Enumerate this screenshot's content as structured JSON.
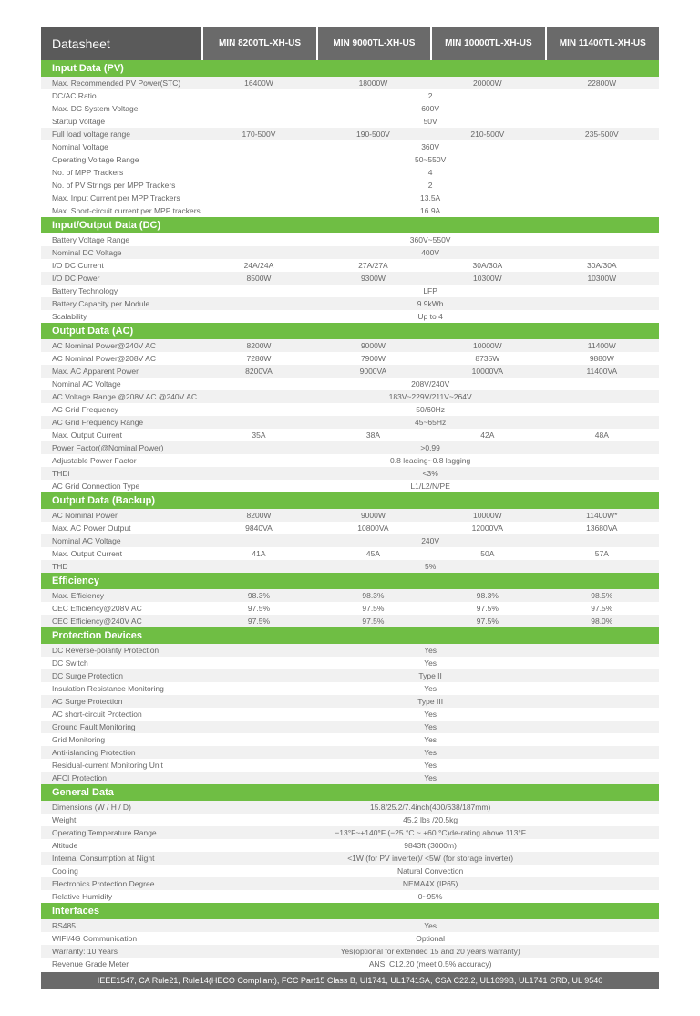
{
  "title": "Datasheet",
  "colors": {
    "section_bg": "#6fbe44",
    "header_bg": "#5a5a5a",
    "colhdr_bg": "#6a6a6a",
    "alt_row": "#f1f1f1"
  },
  "models": [
    "MIN 8200TL-XH-US",
    "MIN 9000TL-XH-US",
    "MIN 10000TL-XH-US",
    "MIN 11400TL-XH-US"
  ],
  "sections": [
    {
      "title": "Input Data (PV)",
      "rows": [
        {
          "label": "Max. Recommended PV Power(STC)",
          "vals": [
            "16400W",
            "18000W",
            "20000W",
            "22800W"
          ],
          "alt": true
        },
        {
          "label": "DC/AC Ratio",
          "vals": [
            "2"
          ],
          "span": 4
        },
        {
          "label": "Max. DC System Voltage",
          "vals": [
            "600V"
          ],
          "span": 4
        },
        {
          "label": "Startup Voltage",
          "vals": [
            "50V"
          ],
          "span": 4
        },
        {
          "label": "Full load voltage range",
          "vals": [
            "170-500V",
            "190-500V",
            "210-500V",
            "235-500V"
          ],
          "alt": true
        },
        {
          "label": "Nominal Voltage",
          "vals": [
            "360V"
          ],
          "span": 4
        },
        {
          "label": "Operating Voltage Range",
          "vals": [
            "50~550V"
          ],
          "span": 4
        },
        {
          "label": "No. of MPP Trackers",
          "vals": [
            "4"
          ],
          "span": 4
        },
        {
          "label": "No. of PV Strings per MPP Trackers",
          "vals": [
            "2"
          ],
          "span": 4
        },
        {
          "label": "Max. Input Current per MPP Trackers",
          "vals": [
            "13.5A"
          ],
          "span": 4
        },
        {
          "label": "Max. Short-circuit current per MPP trackers",
          "vals": [
            "16.9A"
          ],
          "span": 4
        }
      ]
    },
    {
      "title": "Input/Output Data (DC)",
      "rows": [
        {
          "label": "Battery Voltage Range",
          "vals": [
            "360V~550V"
          ],
          "span": 4
        },
        {
          "label": "Nominal DC Voltage",
          "vals": [
            "400V"
          ],
          "span": 4,
          "alt": true
        },
        {
          "label": "I/O DC Current",
          "vals": [
            "24A/24A",
            "27A/27A",
            "30A/30A",
            "30A/30A"
          ]
        },
        {
          "label": "I/O DC Power",
          "vals": [
            "8500W",
            "9300W",
            "10300W",
            "10300W"
          ],
          "alt": true
        },
        {
          "label": "Battery Technology",
          "vals": [
            "LFP"
          ],
          "span": 4
        },
        {
          "label": "Battery Capacity per Module",
          "vals": [
            "9.9kWh"
          ],
          "span": 4,
          "alt": true
        },
        {
          "label": "Scalability",
          "vals": [
            "Up to 4"
          ],
          "span": 4
        }
      ]
    },
    {
      "title": "Output Data (AC)",
      "rows": [
        {
          "label": "AC Nominal Power@240V AC",
          "vals": [
            "8200W",
            "9000W",
            "10000W",
            "11400W"
          ],
          "alt": true
        },
        {
          "label": "AC Nominal Power@208V AC",
          "vals": [
            "7280W",
            "7900W",
            "8735W",
            "9880W"
          ]
        },
        {
          "label": "Max. AC Apparent Power",
          "vals": [
            "8200VA",
            "9000VA",
            "10000VA",
            "11400VA"
          ],
          "alt": true
        },
        {
          "label": "Nominal AC Voltage",
          "vals": [
            "208V/240V"
          ],
          "span": 4
        },
        {
          "label": "AC Voltage Range @208V AC @240V AC",
          "vals": [
            "183V~229V/211V~264V"
          ],
          "span": 4,
          "alt": true
        },
        {
          "label": "AC Grid Frequency",
          "vals": [
            "50/60Hz"
          ],
          "span": 4
        },
        {
          "label": "AC Grid Frequency Range",
          "vals": [
            "45~65Hz"
          ],
          "span": 4,
          "alt": true
        },
        {
          "label": "Max. Output Current",
          "vals": [
            "35A",
            "38A",
            "42A",
            "48A"
          ]
        },
        {
          "label": "Power Factor(@Nominal Power)",
          "vals": [
            ">0.99"
          ],
          "span": 4,
          "alt": true
        },
        {
          "label": "Adjustable Power Factor",
          "vals": [
            "0.8 leading~0.8 lagging"
          ],
          "span": 4
        },
        {
          "label": "THDi",
          "vals": [
            "<3%"
          ],
          "span": 4,
          "alt": true
        },
        {
          "label": "AC Grid Connection Type",
          "vals": [
            "L1/L2/N/PE"
          ],
          "span": 4
        }
      ]
    },
    {
      "title": "Output Data (Backup)",
      "rows": [
        {
          "label": "AC Nominal Power",
          "vals": [
            "8200W",
            "9000W",
            "10000W",
            "11400W*"
          ],
          "alt": true
        },
        {
          "label": "Max. AC Power Output",
          "vals": [
            "9840VA",
            "10800VA",
            "12000VA",
            "13680VA"
          ]
        },
        {
          "label": "Nominal AC Voltage",
          "vals": [
            "240V"
          ],
          "span": 4,
          "alt": true
        },
        {
          "label": "Max. Output Current",
          "vals": [
            "41A",
            "45A",
            "50A",
            "57A"
          ]
        },
        {
          "label": "THD",
          "vals": [
            "5%"
          ],
          "span": 4,
          "alt": true
        }
      ]
    },
    {
      "title": "Efficiency",
      "rows": [
        {
          "label": "Max. Efficiency",
          "vals": [
            "98.3%",
            "98.3%",
            "98.3%",
            "98.5%"
          ],
          "alt": true
        },
        {
          "label": "CEC Efficiency@208V AC",
          "vals": [
            "97.5%",
            "97.5%",
            "97.5%",
            "97.5%"
          ]
        },
        {
          "label": "CEC Efficiency@240V AC",
          "vals": [
            "97.5%",
            "97.5%",
            "97.5%",
            "98.0%"
          ],
          "alt": true
        }
      ]
    },
    {
      "title": "Protection Devices",
      "rows": [
        {
          "label": "DC Reverse-polarity Protection",
          "vals": [
            "Yes"
          ],
          "span": 4,
          "alt": true
        },
        {
          "label": "DC Switch",
          "vals": [
            "Yes"
          ],
          "span": 4
        },
        {
          "label": "DC Surge Protection",
          "vals": [
            "Type II"
          ],
          "span": 4,
          "alt": true
        },
        {
          "label": "Insulation Resistance Monitoring",
          "vals": [
            "Yes"
          ],
          "span": 4
        },
        {
          "label": "AC Surge Protection",
          "vals": [
            "Type III"
          ],
          "span": 4,
          "alt": true
        },
        {
          "label": "AC short-circuit Protection",
          "vals": [
            "Yes"
          ],
          "span": 4
        },
        {
          "label": "Ground Fault Monitoring",
          "vals": [
            "Yes"
          ],
          "span": 4,
          "alt": true
        },
        {
          "label": "Grid Monitoring",
          "vals": [
            "Yes"
          ],
          "span": 4
        },
        {
          "label": "Anti-islanding Protection",
          "vals": [
            "Yes"
          ],
          "span": 4,
          "alt": true
        },
        {
          "label": "Residual-current Monitoring Unit",
          "vals": [
            "Yes"
          ],
          "span": 4
        },
        {
          "label": "AFCI Protection",
          "vals": [
            "Yes"
          ],
          "span": 4,
          "alt": true
        }
      ]
    },
    {
      "title": "General Data",
      "rows": [
        {
          "label": "Dimensions (W / H / D)",
          "vals": [
            "15.8/25.2/7.4inch(400/638/187mm)"
          ],
          "span": 4,
          "alt": true
        },
        {
          "label": "Weight",
          "vals": [
            "45.2 lbs /20.5kg"
          ],
          "span": 4
        },
        {
          "label": "Operating Temperature Range",
          "vals": [
            "−13°F~+140°F (−25 °C ~ +60 °C)de-rating above 113°F"
          ],
          "span": 4,
          "alt": true
        },
        {
          "label": "Altitude",
          "vals": [
            "9843ft (3000m)"
          ],
          "span": 4
        },
        {
          "label": "Internal Consumption at Night",
          "vals": [
            "<1W (for PV inverter)/ <5W (for storage inverter)"
          ],
          "span": 4,
          "alt": true
        },
        {
          "label": "Cooling",
          "vals": [
            "Natural Convection"
          ],
          "span": 4
        },
        {
          "label": "Electronics Protection Degree",
          "vals": [
            "NEMA4X (IP65)"
          ],
          "span": 4,
          "alt": true
        },
        {
          "label": "Relative Humidity",
          "vals": [
            "0~95%"
          ],
          "span": 4
        }
      ]
    },
    {
      "title": "Interfaces",
      "rows": [
        {
          "label": "RS485",
          "vals": [
            "Yes"
          ],
          "span": 4,
          "alt": true
        },
        {
          "label": "WIFI/4G Communication",
          "vals": [
            "Optional"
          ],
          "span": 4
        },
        {
          "label": "Warranty: 10 Years",
          "vals": [
            "Yes(optional for extended 15 and 20 years warranty)"
          ],
          "span": 4,
          "alt": true
        },
        {
          "label": "Revenue Grade Meter",
          "vals": [
            "ANSI C12.20 (meet 0.5% accuracy)"
          ],
          "span": 4
        }
      ]
    }
  ],
  "footer": "IEEE1547, CA Rule21, Rule14(HECO Compliant), FCC Part15 Class B, Ul1741, UL1741SA, CSA C22.2, UL1699B, UL1741 CRD, UL 9540"
}
